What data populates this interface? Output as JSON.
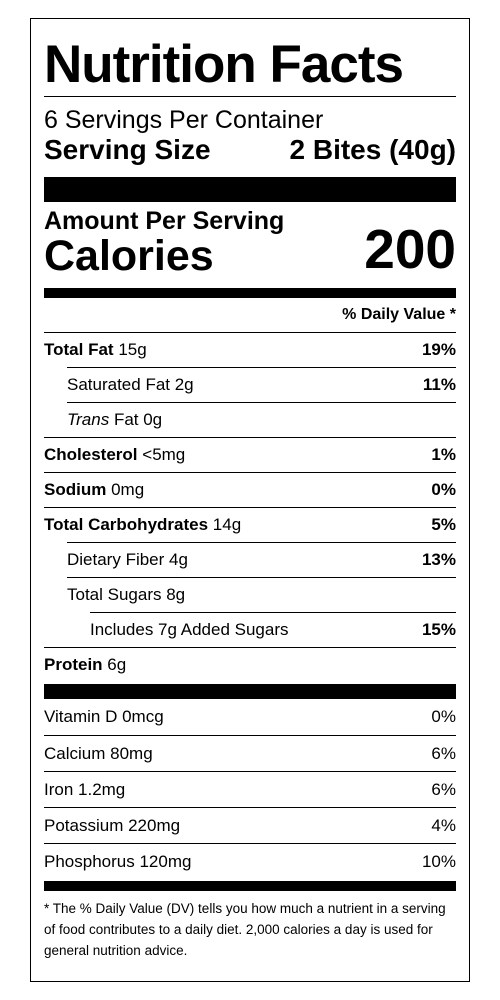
{
  "title": "Nutrition Facts",
  "servings_per_container": "6 Servings Per Container",
  "serving_size": {
    "label": "Serving Size",
    "value": "2 Bites (40g)"
  },
  "amount_per_serving": "Amount Per Serving",
  "calories": {
    "label": "Calories",
    "value": "200"
  },
  "daily_value_header": "% Daily Value *",
  "nutrients": {
    "total_fat": {
      "label": "Total Fat",
      "amount": "15g",
      "pct": "19%"
    },
    "saturated_fat": {
      "label": "Saturated Fat 2g",
      "pct": "11%"
    },
    "trans_fat": {
      "italic": "Trans",
      "label": "Fat 0g"
    },
    "cholesterol": {
      "label": "Cholesterol",
      "amount": "<5mg",
      "pct": "1%"
    },
    "sodium": {
      "label": "Sodium",
      "amount": "0mg",
      "pct": "0%"
    },
    "total_carbs": {
      "label": "Total Carbohydrates",
      "amount": "14g",
      "pct": "5%"
    },
    "dietary_fiber": {
      "label": "Dietary Fiber 4g",
      "pct": "13%"
    },
    "total_sugars": {
      "label": "Total Sugars 8g"
    },
    "added_sugars": {
      "label": "Includes 7g Added Sugars",
      "pct": "15%"
    },
    "protein": {
      "label": "Protein",
      "amount": "6g"
    }
  },
  "vitamins": [
    {
      "label": "Vitamin D 0mcg",
      "pct": "0%"
    },
    {
      "label": "Calcium 80mg",
      "pct": "6%"
    },
    {
      "label": "Iron 1.2mg",
      "pct": "6%"
    },
    {
      "label": "Potassium 220mg",
      "pct": "4%"
    },
    {
      "label": "Phosphorus 120mg",
      "pct": "10%"
    }
  ],
  "footnote": "* The % Daily Value (DV) tells you how much a nutrient in a serving of food contributes to a daily diet. 2,000 calories a day is used for general nutrition advice."
}
